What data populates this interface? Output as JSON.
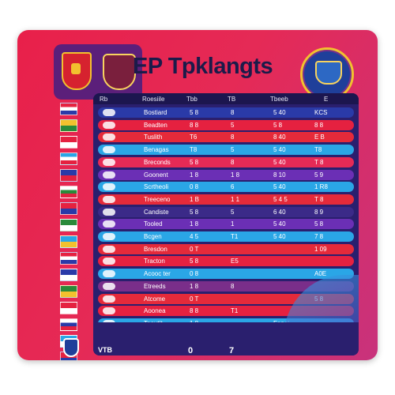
{
  "title": "EP Tpklangts",
  "header_columns": [
    "Rb",
    "Roesiile",
    "Tbb",
    "TB",
    "Tbeeb",
    "E"
  ],
  "rows": [
    {
      "team": "Bostiard",
      "c1": "5 8",
      "c2": "8",
      "c3": "5 40",
      "c4": "KCS",
      "bg": "#2a3aa8"
    },
    {
      "team": "Beadten",
      "c1": "8 8",
      "c2": "5",
      "c3": "5 8",
      "c4": "8 8",
      "bg": "#e52140"
    },
    {
      "team": "Tuslith",
      "c1": "T6",
      "c2": "8",
      "c3": "8 40",
      "c4": "E B",
      "bg": "#e52a3a"
    },
    {
      "team": "Benagas",
      "c1": "T8",
      "c2": "5",
      "c3": "5 40",
      "c4": "T8",
      "bg": "#2aa6e6"
    },
    {
      "team": "Breconds",
      "c1": "5 8",
      "c2": "8",
      "c3": "5 40",
      "c4": "T 8",
      "bg": "#e52a56"
    },
    {
      "team": "Goonent",
      "c1": "1 8",
      "c2": "1 8",
      "c3": "8 10",
      "c4": "5 9",
      "bg": "#6b2fb5"
    },
    {
      "team": "Scrtheoli",
      "c1": "0 8",
      "c2": "6",
      "c3": "5 40",
      "c4": "1 R8",
      "bg": "#2aa6e6"
    },
    {
      "team": "Treeceno",
      "c1": "1 B",
      "c2": "1 1",
      "c3": "5 4 5",
      "c4": "T 8",
      "bg": "#e52a3a"
    },
    {
      "team": "Candiste",
      "c1": "5 8",
      "c2": "5",
      "c3": "6 40",
      "c4": "8 9",
      "bg": "#3b2a88"
    },
    {
      "team": "Tooled",
      "c1": "1 8",
      "c2": "1",
      "c3": "5 40",
      "c4": "5 8",
      "bg": "#6b2fb5"
    },
    {
      "team": "Bcgen",
      "c1": "4 5",
      "c2": "T1",
      "c3": "5 40",
      "c4": "7 8",
      "bg": "#2aa6e6"
    },
    {
      "team": "Bresdon",
      "c1": "0 T",
      "c2": "",
      "c3": "",
      "c4": "1 09",
      "bg": "#e52a3a"
    },
    {
      "team": "Tracton",
      "c1": "5 8",
      "c2": "E5",
      "c3": "",
      "c4": "",
      "bg": "#e52140"
    },
    {
      "team": "Acooc ter",
      "c1": "0 8",
      "c2": "",
      "c3": "",
      "c4": "A0E",
      "bg": "#2aa6e6"
    },
    {
      "team": "Etreeds",
      "c1": "1 8",
      "c2": "8",
      "c3": "",
      "c4": "",
      "bg": "#7a2e8a"
    },
    {
      "team": "Atcome",
      "c1": "0 T",
      "c2": "",
      "c3": "",
      "c4": "5 8",
      "bg": "#e52a3a"
    },
    {
      "team": "Aoonea",
      "c1": "8 8",
      "c2": "T1",
      "c3": "",
      "c4": "",
      "bg": "#e52140"
    },
    {
      "team": "Tooutit",
      "c1": "1 8",
      "c2": "",
      "c3": "Fanei",
      "c4": "",
      "bg": "#2aa6e6"
    }
  ],
  "footer": {
    "label": "VTB",
    "a": "0",
    "b": "7"
  },
  "colors": {
    "accent": "#e8204a",
    "table": "#2a1f6e"
  }
}
